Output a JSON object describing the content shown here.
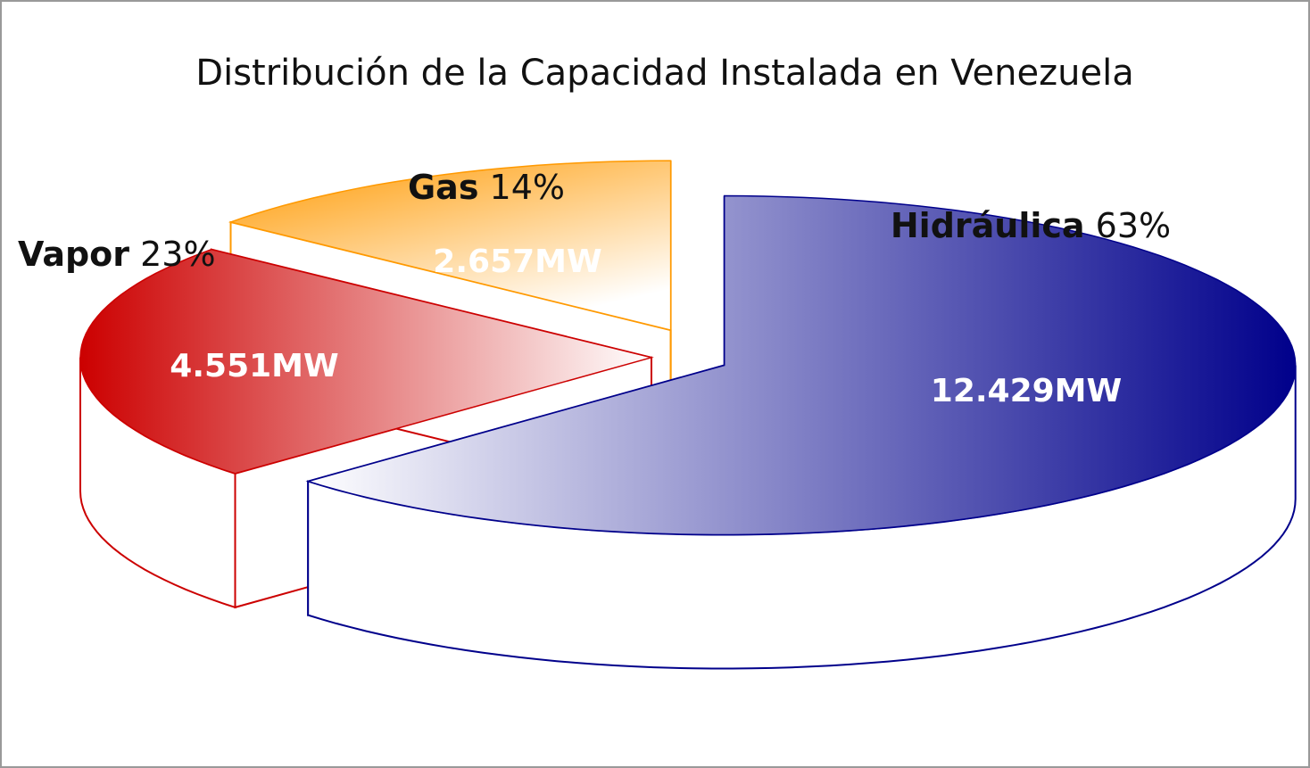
{
  "chart_data": {
    "type": "pie3d",
    "title": "Distribución de la Capacidad Instalada en Venezuela",
    "categories": [
      "Hidráulica",
      "Vapor",
      "Gas"
    ],
    "values": [
      63,
      23,
      14
    ],
    "value_labels": [
      "63%",
      "23%",
      "14%"
    ],
    "capacity_labels": [
      "12.429MW",
      "4.551MW",
      "2.657MW"
    ],
    "colors": [
      "#00008b",
      "#cc0000",
      "#ff9900"
    ]
  }
}
